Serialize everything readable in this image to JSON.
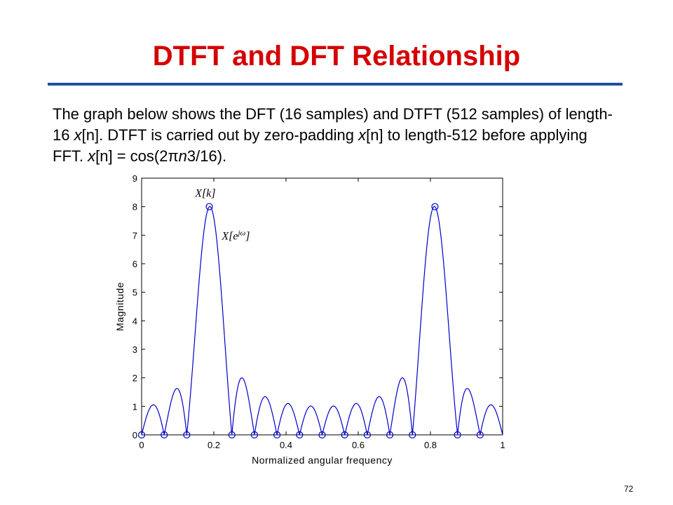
{
  "slide": {
    "title": "DTFT and DFT Relationship",
    "number": "72",
    "body": {
      "t1": "The graph below shows the DFT (16 samples) and DTFT (512 samples) of length-16 ",
      "xn1": "x",
      "n1": "[n]",
      "t2": ". DTFT is carried out by zero-padding ",
      "xn2": "x",
      "n2": "[n]",
      "t3": " to length-512 before applying FFT. ",
      "xn3": "x",
      "n3": "[n]",
      "t4": " = cos(2",
      "pi": "π",
      "nsym": "n",
      "t5": "3/16)."
    }
  },
  "chart_data": {
    "type": "line",
    "title": "",
    "xlabel": "Normalized angular frequency",
    "ylabel": "Magnitude",
    "xlim": [
      0,
      1
    ],
    "ylim": [
      0,
      9
    ],
    "xticks": [
      "0",
      "0.2",
      "0.4",
      "0.6",
      "0.8",
      "1"
    ],
    "yticks": [
      "0",
      "1",
      "2",
      "3",
      "4",
      "5",
      "6",
      "7",
      "8",
      "9"
    ],
    "grid": false,
    "annotations": {
      "dft_label": "X[k]",
      "dtft_label": "X[e^jω]"
    },
    "dft_points": {
      "name": "X[k]",
      "x": [
        0,
        0.0625,
        0.125,
        0.1875,
        0.25,
        0.3125,
        0.375,
        0.4375,
        0.5,
        0.5625,
        0.625,
        0.6875,
        0.75,
        0.8125,
        0.875,
        0.9375
      ],
      "y": [
        0,
        0,
        0,
        8,
        0,
        0,
        0,
        0,
        0,
        0,
        0,
        0,
        0,
        8,
        0,
        0
      ]
    },
    "dtft_curve": {
      "name": "X[e^jω]",
      "expression": "|Σ_{n=0..15} cos(2π·3n/16)·e^{-j2πfn}|",
      "x_range": [
        0,
        1
      ],
      "samples": 512
    },
    "colors": {
      "curve": "#0000cc",
      "markers": "#0000cc",
      "axes": "#000000"
    }
  }
}
